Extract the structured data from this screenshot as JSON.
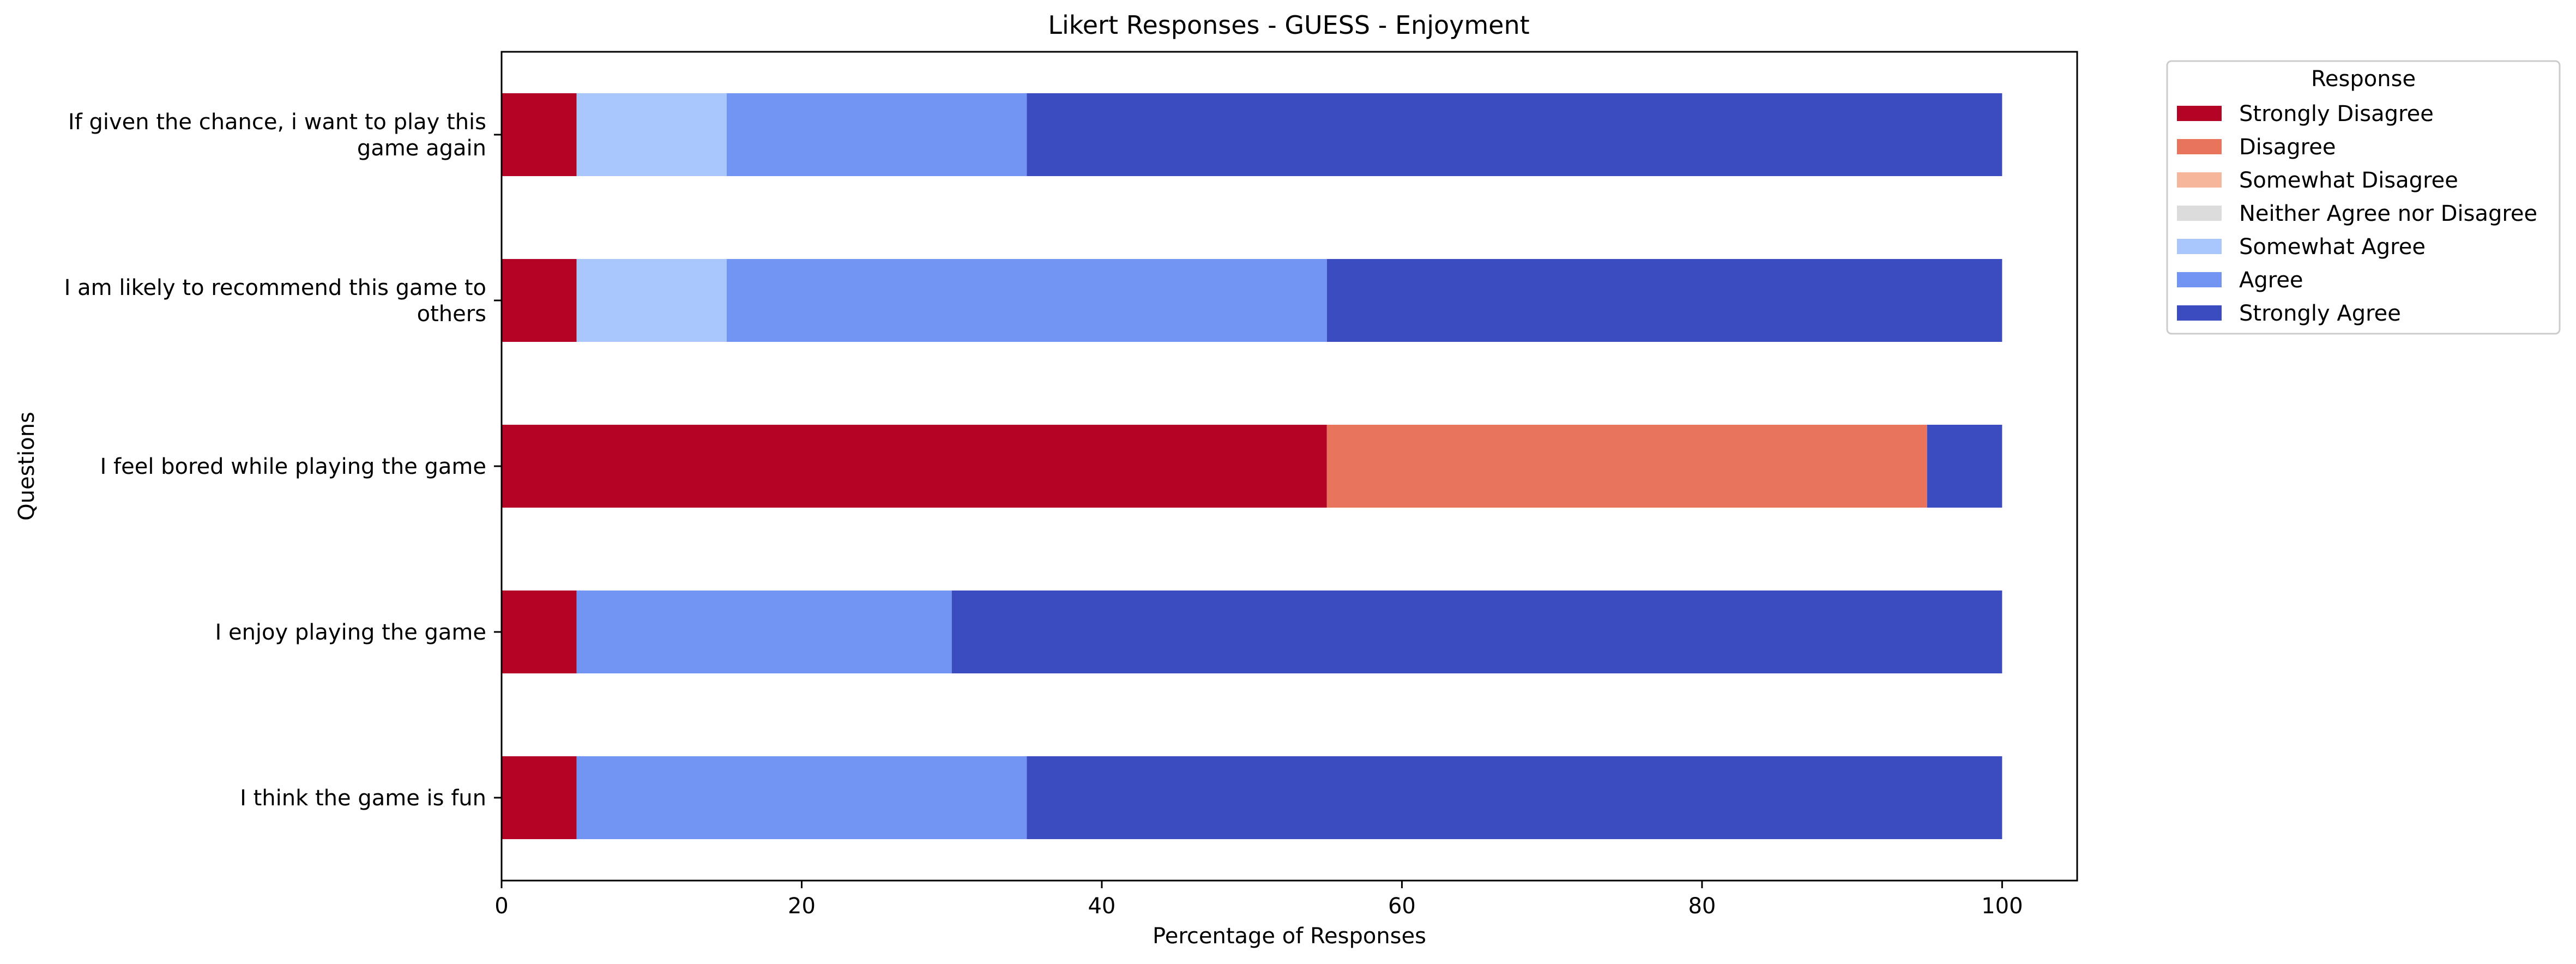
{
  "chart_data": {
    "type": "bar",
    "orientation": "horizontal",
    "stacked": true,
    "title": "Likert Responses - GUESS - Enjoyment",
    "xlabel": "Percentage of Responses",
    "ylabel": "Questions",
    "xlim": [
      0,
      105
    ],
    "xticks": [
      "0",
      "20",
      "40",
      "60",
      "80",
      "100"
    ],
    "grid": false,
    "legend_title": "Response",
    "legend_position": "outside right, top",
    "categories": [
      [
        "If given the chance, i want to play this",
        "game again"
      ],
      [
        "I am likely to recommend this game to",
        "others"
      ],
      [
        "I feel bored while playing the game"
      ],
      [
        "I enjoy playing the game"
      ],
      [
        "I think the game is fun"
      ]
    ],
    "series": [
      {
        "name": "Strongly Disagree",
        "color": "#b40426",
        "values": [
          5,
          5,
          55,
          5,
          5
        ]
      },
      {
        "name": "Disagree",
        "color": "#e7745b",
        "values": [
          0,
          0,
          40,
          0,
          0
        ]
      },
      {
        "name": "Somewhat Disagree",
        "color": "#f6b69b",
        "values": [
          0,
          0,
          0,
          0,
          0
        ]
      },
      {
        "name": "Neither Agree nor Disagree",
        "color": "#dddcdc",
        "values": [
          0,
          0,
          0,
          0,
          0
        ]
      },
      {
        "name": "Somewhat Agree",
        "color": "#aac7fd",
        "values": [
          10,
          10,
          0,
          0,
          0
        ]
      },
      {
        "name": "Agree",
        "color": "#7295f4",
        "values": [
          20,
          40,
          0,
          25,
          30
        ]
      },
      {
        "name": "Strongly Agree",
        "color": "#3b4cc0",
        "values": [
          65,
          45,
          5,
          70,
          65
        ]
      }
    ]
  }
}
